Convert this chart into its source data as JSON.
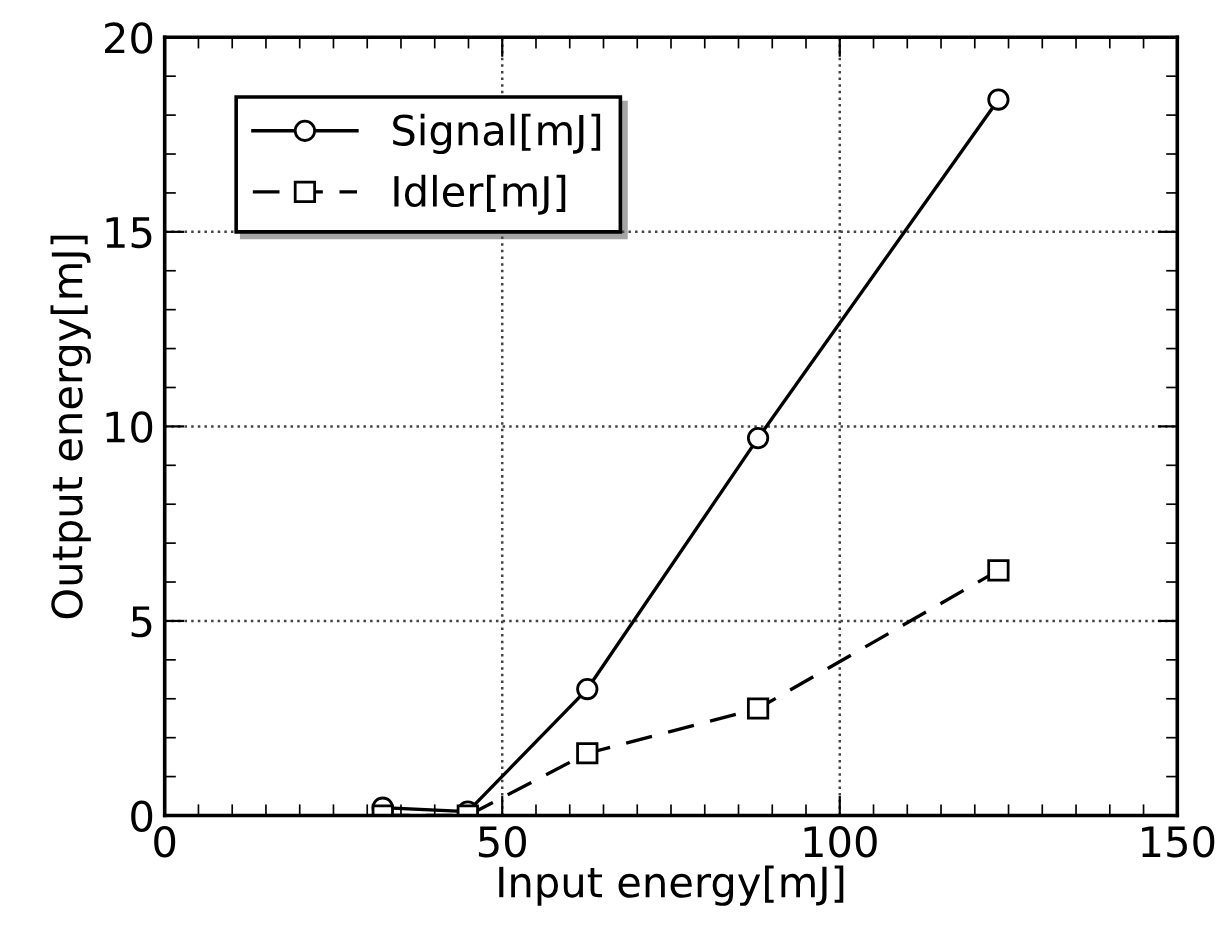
{
  "chart_data": {
    "type": "line",
    "xlabel": "Input energy[mJ]",
    "ylabel": "Output energy[mJ]",
    "xlim": [
      0,
      150
    ],
    "ylim": [
      0,
      20
    ],
    "xticks": [
      0,
      50,
      100,
      150
    ],
    "yticks": [
      0,
      5,
      10,
      15,
      20
    ],
    "grid": true,
    "legend": "top left",
    "series": [
      {
        "name": "Signal[mJ]",
        "color": "#000000",
        "marker": "circle",
        "line_style": "solid",
        "x": [
          32.3,
          44.9,
          62.6,
          87.9,
          123.5
        ],
        "values": [
          0.2,
          0.1,
          3.25,
          9.7,
          18.4
        ]
      },
      {
        "name": "Idler[mJ]",
        "color": "#000000",
        "marker": "square",
        "line_style": "dashed",
        "x": [
          32.3,
          44.9,
          62.6,
          87.9,
          123.5
        ],
        "values": [
          0.0,
          0.0,
          1.6,
          2.75,
          6.3
        ]
      }
    ]
  }
}
